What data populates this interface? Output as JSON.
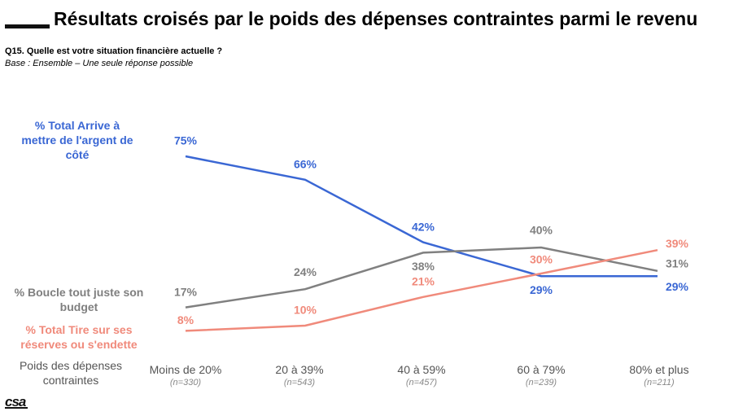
{
  "title": "Résultats croisés par le poids des dépenses contraintes parmi le revenu",
  "question": "Q15. Quelle est votre situation financière actuelle ?",
  "base": "Base : Ensemble – Une seule réponse possible",
  "logo": "csa",
  "chart_data": {
    "type": "line",
    "xlabel": "Poids des dépenses contraintes",
    "categories": [
      "Moins de 20%",
      "20 à 39%",
      "40 à 59%",
      "60 à 79%",
      "80% et plus"
    ],
    "sample_sizes": [
      "(n=330)",
      "(n=543)",
      "(n=457)",
      "(n=239)",
      "(n=211)"
    ],
    "ylim": [
      0,
      100
    ],
    "grid": false,
    "series": [
      {
        "name": "% Total Arrive à mettre de l'argent de côté",
        "color": "#3a67d4",
        "values": [
          75,
          66,
          42,
          29,
          29
        ],
        "labels": [
          "75%",
          "66%",
          "42%",
          "29%",
          "29%"
        ]
      },
      {
        "name": "% Boucle tout juste son budget",
        "color": "#808080",
        "values": [
          17,
          24,
          38,
          40,
          31
        ],
        "labels": [
          "17%",
          "24%",
          "38%",
          "40%",
          "31%"
        ]
      },
      {
        "name": "% Total Tire sur ses réserves ou s'endette",
        "color": "#f08a7b",
        "values": [
          8,
          10,
          21,
          30,
          39
        ],
        "labels": [
          "8%",
          "10%",
          "21%",
          "30%",
          "39%"
        ]
      }
    ]
  }
}
